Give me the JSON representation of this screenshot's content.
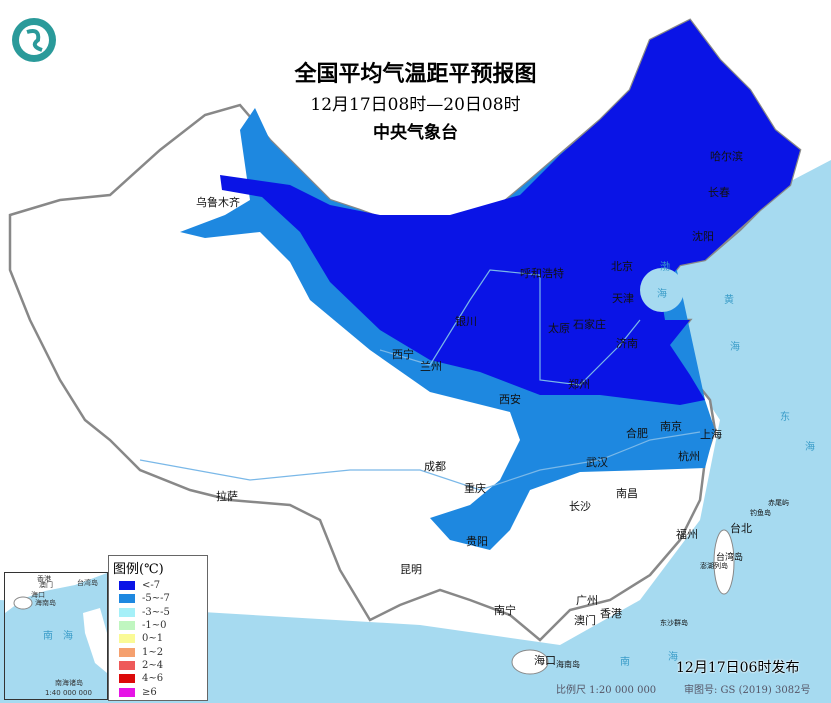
{
  "title": "全国平均气温距平预报图",
  "period": "12月17日08时—20日08时",
  "issuer": "中央气象台",
  "logo_icon": "cma-emblem-icon",
  "colors": {
    "lt7": "#0a14e6",
    "m5to7": "#1e88e0",
    "m3to5": "#a5f0f8",
    "m1to0": "#c0f6c0",
    "0to1": "#fafa96",
    "1to2": "#f5a06e",
    "2to4": "#ee5a5a",
    "4to6": "#dc0a0a",
    "ge6": "#e614e6",
    "sea": "#a6daf0"
  },
  "legend": {
    "title": "图例(℃)",
    "items": [
      {
        "label": "<-7",
        "color": "#0a14e6"
      },
      {
        "label": "-5~-7",
        "color": "#1e88e0"
      },
      {
        "label": "-3~-5",
        "color": "#a5f0f8"
      },
      {
        "label": "-1~0",
        "color": "#c0f6c0"
      },
      {
        "label": "0~1",
        "color": "#fafa96"
      },
      {
        "label": "1~2",
        "color": "#f5a06e"
      },
      {
        "label": "2~4",
        "color": "#ee5a5a"
      },
      {
        "label": "4~6",
        "color": "#dc0a0a"
      },
      {
        "label": "≥6",
        "color": "#e614e6"
      }
    ]
  },
  "cities": [
    "乌鲁木齐",
    "哈尔滨",
    "长春",
    "沈阳",
    "北京",
    "天津",
    "呼和浩特",
    "石家庄",
    "太原",
    "济南",
    "银川",
    "兰州",
    "西宁",
    "郑州",
    "西安",
    "合肥",
    "南京",
    "上海",
    "杭州",
    "武汉",
    "成都",
    "重庆",
    "长沙",
    "南昌",
    "贵阳",
    "拉萨",
    "昆明",
    "福州",
    "台北",
    "南宁",
    "广州",
    "香港",
    "澳门",
    "海口"
  ],
  "seas": [
    "渤",
    "海",
    "黄",
    "海",
    "东",
    "海",
    "南",
    "海"
  ],
  "islands": [
    "台湾岛",
    "海南岛",
    "钓鱼岛",
    "赤尾屿",
    "澎湖列岛",
    "东沙群岛"
  ],
  "inset": {
    "labels": [
      "香港",
      "澳门",
      "台湾岛",
      "海口",
      "海南岛",
      "南",
      "海",
      "南海诸岛"
    ],
    "scale": "1:40 000 000"
  },
  "publish": "12月17日06时发布",
  "scale": "比例尺 1:20 000 000",
  "review_no": "审图号: GS (2019) 3082号"
}
